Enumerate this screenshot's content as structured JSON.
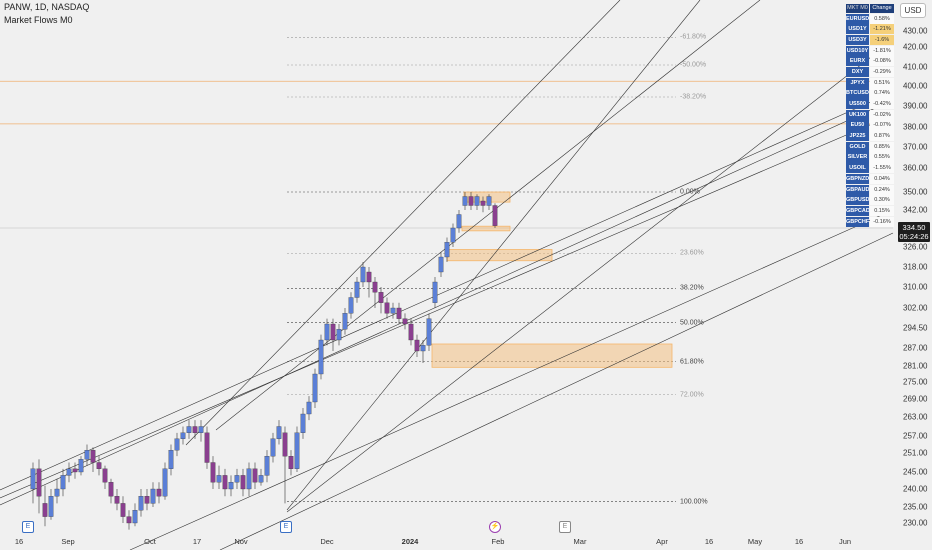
{
  "header": {
    "symbol_line": "PANW, 1D, NASDAQ",
    "indicator_line": "Market Flows M0"
  },
  "currency": "USD",
  "last_price": {
    "value": "334.50",
    "countdown": "05:24:26"
  },
  "colors": {
    "up": "#5b7fd6",
    "down": "#8a3f8f",
    "zone": "#f5b66a",
    "fib_line": "#888888",
    "h_line": "#f0b070",
    "trend": "#333333"
  },
  "chart_data": {
    "type": "candlestick",
    "y_ticks": [
      "430.00",
      "420.00",
      "410.00",
      "400.00",
      "390.00",
      "380.00",
      "370.00",
      "360.00",
      "350.00",
      "342.00",
      "334.00",
      "326.00",
      "318.00",
      "310.00",
      "302.00",
      "294.50",
      "287.00",
      "281.00",
      "275.00",
      "269.00",
      "263.00",
      "257.00",
      "251.00",
      "245.00",
      "240.00",
      "235.00",
      "230.00"
    ],
    "x_ticks": [
      {
        "label": "16",
        "bold": false
      },
      {
        "label": "Sep",
        "bold": false
      },
      {
        "label": "Oct",
        "bold": false
      },
      {
        "label": "17",
        "bold": false
      },
      {
        "label": "Nov",
        "bold": false
      },
      {
        "label": "Dec",
        "bold": false
      },
      {
        "label": "2024",
        "bold": true
      },
      {
        "label": "Feb",
        "bold": false
      },
      {
        "label": "Mar",
        "bold": false
      },
      {
        "label": "Apr",
        "bold": false
      },
      {
        "label": "16",
        "bold": false
      },
      {
        "label": "May",
        "bold": false
      },
      {
        "label": "16",
        "bold": false
      },
      {
        "label": "Jun",
        "bold": false
      }
    ],
    "fib_levels": [
      {
        "label": "0.00%",
        "price": 350,
        "color": "#444444"
      },
      {
        "label": "23.60%",
        "price": 323.5,
        "color": "#999999"
      },
      {
        "label": "38.20%",
        "price": 309.5,
        "color": "#444444"
      },
      {
        "label": "50.00%",
        "price": 296.5,
        "color": "#444444"
      },
      {
        "label": "61.80%",
        "price": 282.5,
        "color": "#444444"
      },
      {
        "label": "72.00%",
        "price": 270.5,
        "color": "#999999"
      },
      {
        "label": "100.00%",
        "price": 236.5,
        "color": "#444444"
      },
      {
        "label": "-38.20%",
        "price": 394.5,
        "color": "#999999"
      },
      {
        "label": "-50.00%",
        "price": 411,
        "color": "#999999"
      },
      {
        "label": "-61.80%",
        "price": 426,
        "color": "#999999"
      }
    ],
    "horizontal_levels": [
      402.5,
      381.5
    ]
  },
  "market_table": {
    "header": [
      "MKT M0",
      "Change %"
    ],
    "rows": [
      {
        "symbol": "EURUSD",
        "change": "0.58%",
        "hl": false
      },
      {
        "symbol": "USD1Y",
        "change": "-1.21%",
        "hl": true
      },
      {
        "symbol": "USD3Y",
        "change": "-1.6%",
        "hl": true
      },
      {
        "symbol": "USD10Y",
        "change": "-1.81%",
        "hl": false
      },
      {
        "symbol": "EURX",
        "change": "-0.08%",
        "hl": false
      },
      {
        "symbol": "DXY",
        "change": "-0.29%",
        "hl": false
      },
      {
        "symbol": "JPYX",
        "change": "0.51%",
        "hl": false
      },
      {
        "symbol": "BTCUSD",
        "change": "0.74%",
        "hl": false
      },
      {
        "symbol": "US500",
        "change": "-0.42%",
        "hl": false
      },
      {
        "symbol": "UK100",
        "change": "-0.02%",
        "hl": false
      },
      {
        "symbol": "EU50",
        "change": "-0.07%",
        "hl": false
      },
      {
        "symbol": "JP225",
        "change": "0.87%",
        "hl": false
      },
      {
        "symbol": "GOLD",
        "change": "0.85%",
        "hl": false
      },
      {
        "symbol": "SILVER",
        "change": "0.55%",
        "hl": false
      },
      {
        "symbol": "USOIL",
        "change": "-1.55%",
        "hl": false
      },
      {
        "symbol": "GBPNZD",
        "change": "0.04%",
        "hl": false
      },
      {
        "symbol": "GBPAUD",
        "change": "0.24%",
        "hl": false
      },
      {
        "symbol": "GBPUSD",
        "change": "0.30%",
        "hl": false
      },
      {
        "symbol": "GBPCAD",
        "change": "0.15%",
        "hl": false
      },
      {
        "symbol": "GBPCHF",
        "change": "-0.16%",
        "hl": false
      }
    ]
  }
}
